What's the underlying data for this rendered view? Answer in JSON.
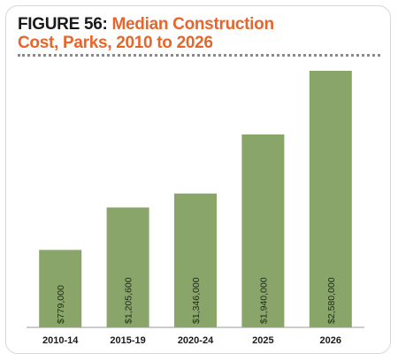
{
  "chart_data": {
    "type": "bar",
    "figure_label": "FIGURE 56:",
    "title": "Median Construction Cost, Parks, 2010 to 2026",
    "categories": [
      "2010-14",
      "2015-19",
      "2020-24",
      "2025",
      "2026"
    ],
    "values": [
      779000,
      1205600,
      1346000,
      1940000,
      2580000
    ],
    "value_labels": [
      "$779,000",
      "$1,205,600",
      "$1,346,000",
      "$1,940,000",
      "$2,580,000"
    ],
    "color": "#89a56a"
  }
}
